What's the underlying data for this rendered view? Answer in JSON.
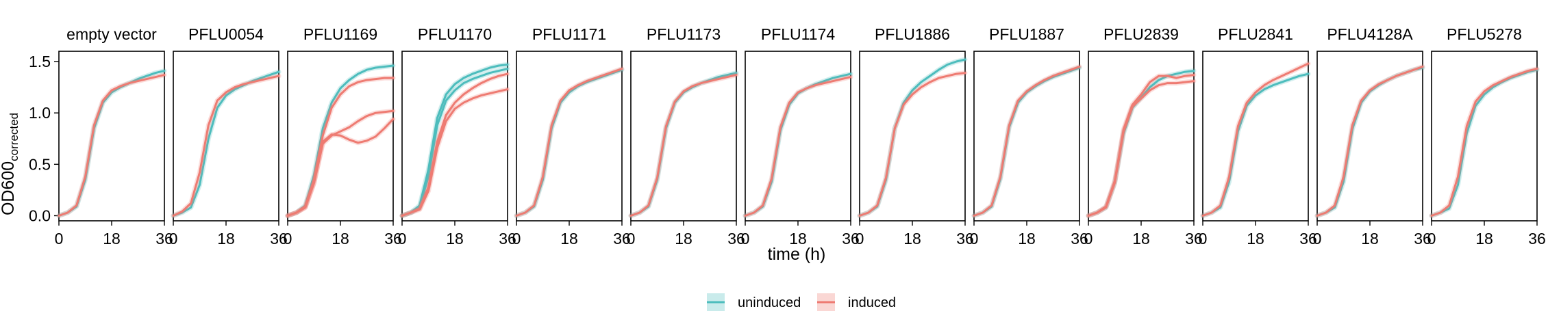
{
  "chart_data": {
    "type": "line",
    "xlabel": "time (h)",
    "ylabel_main": "OD600",
    "ylabel_sub": "corrected",
    "xlim": [
      0,
      36
    ],
    "ylim": [
      -0.05,
      1.6
    ],
    "x_ticks": [
      0,
      18,
      36
    ],
    "y_ticks": [
      0.0,
      0.5,
      1.0,
      1.5
    ],
    "y_tick_labels": [
      "0.0",
      "0.5",
      "1.0",
      "1.5"
    ],
    "legend": {
      "placement": "bottom-center",
      "entries": [
        {
          "label": "uninduced",
          "color": "#4DBDBD"
        },
        {
          "label": "induced",
          "color": "#EE7B72"
        }
      ]
    },
    "x": [
      0,
      3,
      6,
      9,
      12,
      15,
      18,
      21,
      24,
      27,
      30,
      33,
      36
    ],
    "panels": [
      {
        "title": "empty vector",
        "series": [
          {
            "condition": "uninduced",
            "values": [
              0.0,
              0.03,
              0.09,
              0.35,
              0.85,
              1.1,
              1.2,
              1.25,
              1.29,
              1.33,
              1.36,
              1.39,
              1.41
            ]
          },
          {
            "condition": "induced",
            "values": [
              0.0,
              0.03,
              0.1,
              0.38,
              0.88,
              1.12,
              1.22,
              1.26,
              1.29,
              1.31,
              1.33,
              1.35,
              1.37
            ]
          }
        ]
      },
      {
        "title": "PFLU0054",
        "series": [
          {
            "condition": "uninduced",
            "values": [
              0.0,
              0.03,
              0.08,
              0.3,
              0.75,
              1.05,
              1.17,
              1.23,
              1.27,
              1.31,
              1.34,
              1.37,
              1.4
            ]
          },
          {
            "condition": "induced",
            "values": [
              0.0,
              0.04,
              0.12,
              0.42,
              0.88,
              1.12,
              1.2,
              1.25,
              1.28,
              1.3,
              1.32,
              1.34,
              1.36
            ]
          }
        ]
      },
      {
        "title": "PFLU1169",
        "series": [
          {
            "condition": "uninduced",
            "values": [
              0.0,
              0.03,
              0.1,
              0.4,
              0.85,
              1.1,
              1.24,
              1.32,
              1.38,
              1.42,
              1.44,
              1.45,
              1.46
            ]
          },
          {
            "condition": "induced",
            "values": [
              0.0,
              0.03,
              0.09,
              0.35,
              0.78,
              1.05,
              1.18,
              1.26,
              1.3,
              1.32,
              1.33,
              1.34,
              1.34
            ]
          },
          {
            "condition": "induced",
            "values": [
              0.0,
              0.03,
              0.08,
              0.32,
              0.7,
              0.78,
              0.82,
              0.86,
              0.92,
              0.97,
              1.0,
              1.01,
              1.02
            ]
          },
          {
            "condition": "induced",
            "values": [
              0.0,
              0.03,
              0.08,
              0.32,
              0.72,
              0.79,
              0.78,
              0.74,
              0.71,
              0.73,
              0.77,
              0.85,
              0.94
            ]
          }
        ]
      },
      {
        "title": "PFLU1170",
        "series": [
          {
            "condition": "uninduced",
            "values": [
              0.0,
              0.03,
              0.1,
              0.45,
              0.95,
              1.18,
              1.28,
              1.34,
              1.38,
              1.41,
              1.44,
              1.46,
              1.47
            ]
          },
          {
            "condition": "uninduced",
            "values": [
              0.0,
              0.03,
              0.08,
              0.38,
              0.88,
              1.12,
              1.22,
              1.29,
              1.33,
              1.36,
              1.39,
              1.41,
              1.43
            ]
          },
          {
            "condition": "induced",
            "values": [
              0.0,
              0.03,
              0.07,
              0.28,
              0.72,
              0.98,
              1.1,
              1.18,
              1.24,
              1.29,
              1.33,
              1.36,
              1.38
            ]
          },
          {
            "condition": "induced",
            "values": [
              0.0,
              0.03,
              0.06,
              0.24,
              0.66,
              0.92,
              1.04,
              1.1,
              1.14,
              1.17,
              1.19,
              1.21,
              1.23
            ]
          }
        ]
      },
      {
        "title": "PFLU1171",
        "series": [
          {
            "condition": "uninduced",
            "values": [
              0.0,
              0.03,
              0.09,
              0.35,
              0.85,
              1.1,
              1.2,
              1.26,
              1.3,
              1.33,
              1.36,
              1.39,
              1.42
            ]
          },
          {
            "condition": "induced",
            "values": [
              0.0,
              0.03,
              0.1,
              0.38,
              0.88,
              1.12,
              1.22,
              1.27,
              1.31,
              1.34,
              1.37,
              1.4,
              1.43
            ]
          }
        ]
      },
      {
        "title": "PFLU1173",
        "series": [
          {
            "condition": "uninduced",
            "values": [
              0.0,
              0.03,
              0.09,
              0.35,
              0.85,
              1.1,
              1.2,
              1.25,
              1.29,
              1.32,
              1.35,
              1.37,
              1.39
            ]
          },
          {
            "condition": "induced",
            "values": [
              0.0,
              0.03,
              0.1,
              0.37,
              0.87,
              1.11,
              1.21,
              1.26,
              1.29,
              1.31,
              1.33,
              1.35,
              1.37
            ]
          }
        ]
      },
      {
        "title": "PFLU1174",
        "series": [
          {
            "condition": "uninduced",
            "values": [
              0.0,
              0.03,
              0.09,
              0.33,
              0.83,
              1.08,
              1.19,
              1.24,
              1.28,
              1.31,
              1.34,
              1.36,
              1.38
            ]
          },
          {
            "condition": "induced",
            "values": [
              0.0,
              0.03,
              0.1,
              0.36,
              0.86,
              1.1,
              1.2,
              1.24,
              1.27,
              1.29,
              1.31,
              1.33,
              1.35
            ]
          }
        ]
      },
      {
        "title": "PFLU1886",
        "series": [
          {
            "condition": "uninduced",
            "values": [
              0.0,
              0.03,
              0.09,
              0.35,
              0.85,
              1.1,
              1.22,
              1.3,
              1.36,
              1.42,
              1.47,
              1.5,
              1.52
            ]
          },
          {
            "condition": "induced",
            "values": [
              0.0,
              0.03,
              0.1,
              0.37,
              0.85,
              1.08,
              1.18,
              1.25,
              1.3,
              1.34,
              1.36,
              1.38,
              1.39
            ]
          }
        ]
      },
      {
        "title": "PFLU1887",
        "series": [
          {
            "condition": "uninduced",
            "values": [
              0.0,
              0.03,
              0.09,
              0.36,
              0.86,
              1.1,
              1.2,
              1.26,
              1.31,
              1.35,
              1.38,
              1.41,
              1.44
            ]
          },
          {
            "condition": "induced",
            "values": [
              0.0,
              0.03,
              0.1,
              0.38,
              0.88,
              1.12,
              1.21,
              1.27,
              1.32,
              1.36,
              1.39,
              1.42,
              1.45
            ]
          }
        ]
      },
      {
        "title": "PFLU2839",
        "series": [
          {
            "condition": "uninduced",
            "values": [
              0.0,
              0.03,
              0.08,
              0.32,
              0.8,
              1.05,
              1.15,
              1.25,
              1.32,
              1.36,
              1.38,
              1.4,
              1.41
            ]
          },
          {
            "condition": "induced",
            "values": [
              0.0,
              0.03,
              0.09,
              0.34,
              0.84,
              1.08,
              1.18,
              1.3,
              1.36,
              1.36,
              1.34,
              1.36,
              1.37
            ]
          },
          {
            "condition": "induced",
            "values": [
              0.0,
              0.03,
              0.08,
              0.32,
              0.82,
              1.06,
              1.14,
              1.22,
              1.27,
              1.29,
              1.29,
              1.3,
              1.31
            ]
          }
        ]
      },
      {
        "title": "PFLU2841",
        "series": [
          {
            "condition": "uninduced",
            "values": [
              0.0,
              0.03,
              0.08,
              0.33,
              0.82,
              1.07,
              1.17,
              1.23,
              1.27,
              1.3,
              1.33,
              1.36,
              1.38
            ]
          },
          {
            "condition": "induced",
            "values": [
              0.0,
              0.03,
              0.1,
              0.38,
              0.87,
              1.1,
              1.2,
              1.27,
              1.32,
              1.36,
              1.4,
              1.44,
              1.48
            ]
          }
        ]
      },
      {
        "title": "PFLU4128A",
        "series": [
          {
            "condition": "uninduced",
            "values": [
              0.0,
              0.03,
              0.08,
              0.33,
              0.84,
              1.1,
              1.21,
              1.27,
              1.32,
              1.36,
              1.39,
              1.42,
              1.44
            ]
          },
          {
            "condition": "induced",
            "values": [
              0.0,
              0.03,
              0.1,
              0.38,
              0.88,
              1.12,
              1.22,
              1.28,
              1.32,
              1.36,
              1.39,
              1.42,
              1.45
            ]
          }
        ]
      },
      {
        "title": "PFLU5278",
        "series": [
          {
            "condition": "uninduced",
            "values": [
              0.0,
              0.03,
              0.07,
              0.3,
              0.8,
              1.07,
              1.18,
              1.25,
              1.3,
              1.34,
              1.37,
              1.4,
              1.42
            ]
          },
          {
            "condition": "induced",
            "values": [
              0.0,
              0.03,
              0.1,
              0.38,
              0.87,
              1.11,
              1.21,
              1.27,
              1.31,
              1.35,
              1.38,
              1.41,
              1.43
            ]
          }
        ]
      }
    ]
  }
}
